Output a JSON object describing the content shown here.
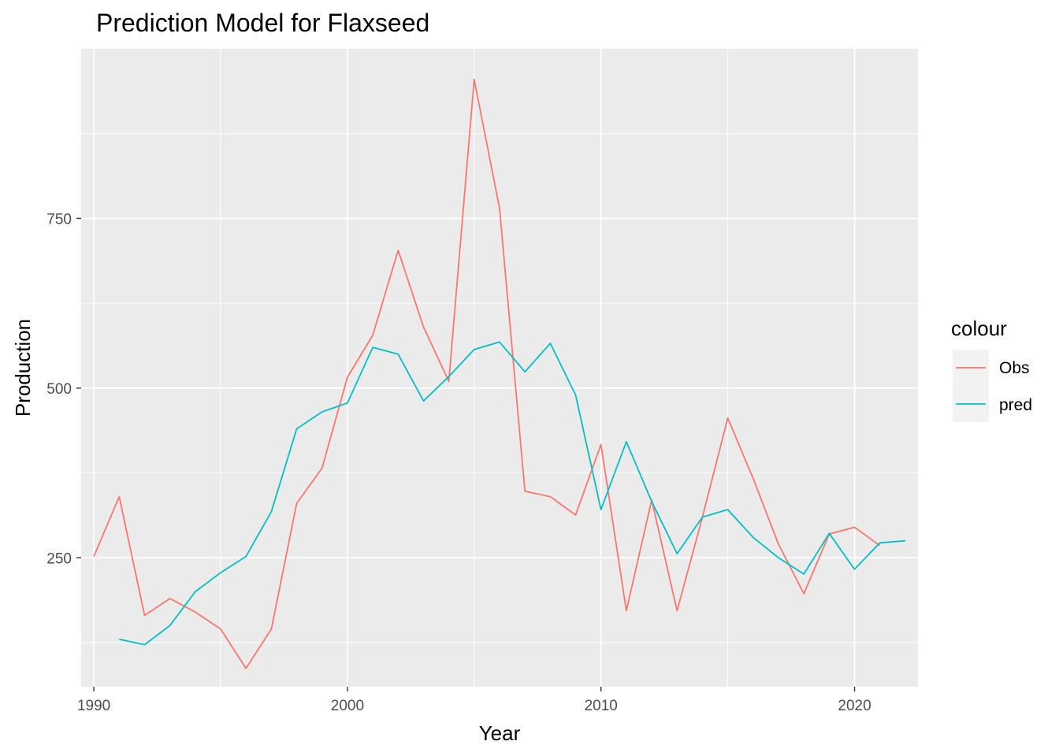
{
  "chart_data": {
    "type": "line",
    "title": "Prediction Model for Flaxseed",
    "xlabel": "Year",
    "ylabel": "Production",
    "xlim": [
      1989.5,
      2022.5
    ],
    "ylim": [
      60,
      1000
    ],
    "x_ticks": [
      1990,
      2000,
      2010,
      2020
    ],
    "y_ticks": [
      250,
      500,
      750
    ],
    "grid": true,
    "legend": {
      "title": "colour",
      "position": "right"
    },
    "series": [
      {
        "name": "Obs",
        "color": "#F8766D",
        "x": [
          1990,
          1991,
          1992,
          1993,
          1994,
          1995,
          1996,
          1997,
          1998,
          1999,
          2000,
          2001,
          2002,
          2003,
          2004,
          2005,
          2006,
          2007,
          2008,
          2009,
          2010,
          2011,
          2012,
          2013,
          2014,
          2015,
          2016,
          2017,
          2018,
          2019,
          2020,
          2021
        ],
        "values": [
          252,
          340,
          165,
          190,
          170,
          145,
          87,
          145,
          330,
          382,
          516,
          578,
          703,
          590,
          510,
          955,
          765,
          348,
          340,
          313,
          417,
          172,
          335,
          172,
          310,
          456,
          367,
          270,
          197,
          285,
          295,
          268
        ]
      },
      {
        "name": "pred",
        "color": "#00BFC4",
        "x": [
          1991,
          1992,
          1993,
          1994,
          1995,
          1996,
          1997,
          1998,
          1999,
          2000,
          2001,
          2002,
          2003,
          2004,
          2005,
          2006,
          2007,
          2008,
          2009,
          2010,
          2011,
          2012,
          2013,
          2014,
          2015,
          2016,
          2017,
          2018,
          2019,
          2020,
          2021,
          2022
        ],
        "values": [
          130,
          122,
          150,
          200,
          228,
          252,
          318,
          440,
          465,
          478,
          560,
          550,
          481,
          517,
          557,
          568,
          524,
          566,
          490,
          321,
          421,
          333,
          256,
          310,
          321,
          280,
          250,
          226,
          286,
          233,
          272,
          275
        ]
      }
    ]
  }
}
